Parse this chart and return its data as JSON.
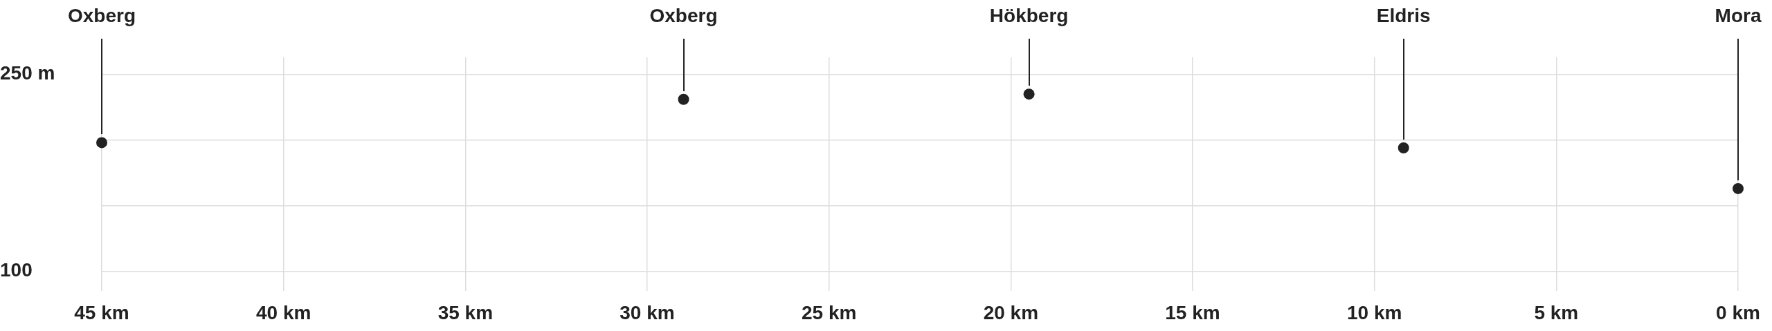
{
  "chart_data": {
    "type": "scatter",
    "color": "#222222",
    "marker": "circle",
    "grid": true,
    "x": [
      45,
      29,
      19.5,
      9.2,
      0
    ],
    "values": [
      198,
      231,
      235,
      194,
      163
    ],
    "annotations": [
      "Oxberg",
      "Oxberg",
      "Hökberg",
      "Eldris",
      "Mora"
    ],
    "xlim": [
      45,
      0
    ],
    "xticks": [
      {
        "value": 45,
        "label": "45 km"
      },
      {
        "value": 40,
        "label": "40 km"
      },
      {
        "value": 35,
        "label": "35 km"
      },
      {
        "value": 30,
        "label": "30 km"
      },
      {
        "value": 25,
        "label": "25 km"
      },
      {
        "value": 20,
        "label": "20 km"
      },
      {
        "value": 15,
        "label": "15 km"
      },
      {
        "value": 10,
        "label": "10 km"
      },
      {
        "value": 5,
        "label": "5 km"
      },
      {
        "value": 0,
        "label": "0 km"
      }
    ],
    "ylim": [
      85,
      263
    ],
    "yticks": [
      100,
      {
        "value": 150,
        "label": null
      },
      {
        "value": 200,
        "label": null
      },
      {
        "value": 250,
        "label": "250 m"
      }
    ]
  }
}
